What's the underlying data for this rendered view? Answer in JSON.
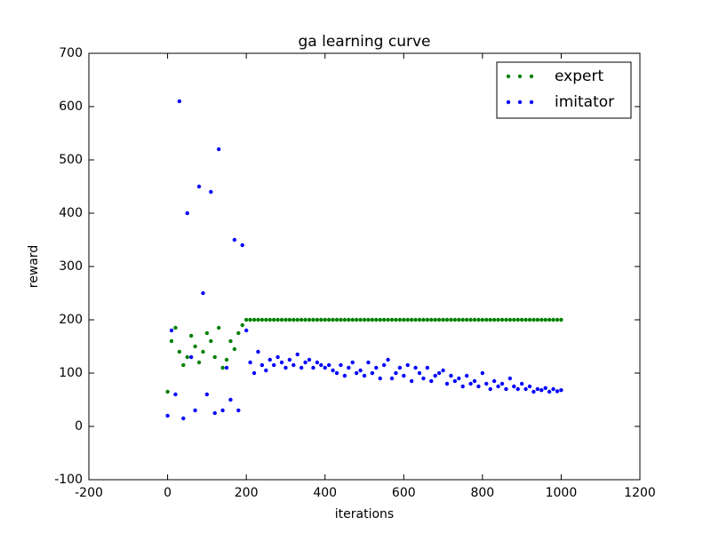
{
  "chart_data": {
    "type": "scatter",
    "title": "ga learning curve",
    "x_label": "iterations",
    "y_label": "reward",
    "xlim": [
      -200,
      1200
    ],
    "xticks": [
      -200,
      0,
      200,
      400,
      600,
      800,
      1000,
      1200
    ],
    "ylim": [
      -100,
      700
    ],
    "yticks": [
      -100,
      0,
      100,
      200,
      300,
      400,
      500,
      600,
      700
    ],
    "legend": "upper right",
    "x": [
      0,
      10,
      20,
      30,
      40,
      50,
      60,
      70,
      80,
      90,
      100,
      110,
      120,
      130,
      140,
      150,
      160,
      170,
      180,
      190,
      200,
      210,
      220,
      230,
      240,
      250,
      260,
      270,
      280,
      290,
      300,
      310,
      320,
      330,
      340,
      350,
      360,
      370,
      380,
      390,
      400,
      410,
      420,
      430,
      440,
      450,
      460,
      470,
      480,
      490,
      500,
      510,
      520,
      530,
      540,
      550,
      560,
      570,
      580,
      590,
      600,
      610,
      620,
      630,
      640,
      650,
      660,
      670,
      680,
      690,
      700,
      710,
      720,
      730,
      740,
      750,
      760,
      770,
      780,
      790,
      800,
      810,
      820,
      830,
      840,
      850,
      860,
      870,
      880,
      890,
      900,
      910,
      920,
      930,
      940,
      950,
      960,
      970,
      980,
      990,
      1000
    ],
    "series": [
      {
        "name": "expert",
        "color": "#008000",
        "values": [
          65,
          160,
          185,
          140,
          115,
          130,
          170,
          150,
          120,
          140,
          175,
          160,
          130,
          185,
          110,
          125,
          160,
          145,
          175,
          190,
          200,
          200,
          200,
          200,
          200,
          200,
          200,
          200,
          200,
          200,
          200,
          200,
          200,
          200,
          200,
          200,
          200,
          200,
          200,
          200,
          200,
          200,
          200,
          200,
          200,
          200,
          200,
          200,
          200,
          200,
          200,
          200,
          200,
          200,
          200,
          200,
          200,
          200,
          200,
          200,
          200,
          200,
          200,
          200,
          200,
          200,
          200,
          200,
          200,
          200,
          200,
          200,
          200,
          200,
          200,
          200,
          200,
          200,
          200,
          200,
          200,
          200,
          200,
          200,
          200,
          200,
          200,
          200,
          200,
          200,
          200,
          200,
          200,
          200,
          200,
          200,
          200,
          200,
          200,
          200,
          200
        ]
      },
      {
        "name": "imitator",
        "color": "#0000ff",
        "values": [
          20,
          180,
          60,
          610,
          15,
          400,
          130,
          30,
          450,
          250,
          60,
          440,
          25,
          520,
          30,
          110,
          50,
          350,
          30,
          340,
          180,
          120,
          100,
          140,
          115,
          105,
          125,
          115,
          130,
          120,
          110,
          125,
          115,
          135,
          110,
          120,
          125,
          110,
          120,
          115,
          110,
          115,
          105,
          100,
          115,
          95,
          110,
          120,
          100,
          105,
          95,
          120,
          100,
          110,
          90,
          115,
          125,
          90,
          100,
          110,
          95,
          115,
          85,
          110,
          100,
          90,
          110,
          85,
          95,
          100,
          105,
          80,
          95,
          85,
          90,
          75,
          95,
          80,
          85,
          75,
          100,
          80,
          70,
          85,
          75,
          80,
          70,
          90,
          75,
          70,
          80,
          70,
          75,
          65,
          70,
          68,
          72,
          65,
          70,
          66,
          68
        ]
      }
    ]
  }
}
